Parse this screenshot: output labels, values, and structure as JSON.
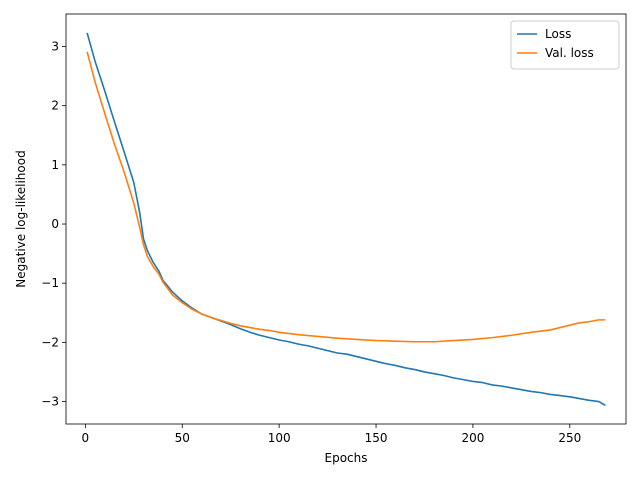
{
  "chart_data": {
    "type": "line",
    "title": "",
    "xlabel": "Epochs",
    "ylabel": "Negative log-likelihood",
    "xlim": [
      -10,
      279
    ],
    "ylim": [
      -3.38,
      3.55
    ],
    "xticks": [
      0,
      50,
      100,
      150,
      200,
      250
    ],
    "xtick_labels": [
      "0",
      "50",
      "100",
      "150",
      "200",
      "250"
    ],
    "yticks": [
      -3,
      -2,
      -1,
      0,
      1,
      2,
      3
    ],
    "ytick_labels": [
      "−3",
      "−2",
      "−1",
      "0",
      "1",
      "2",
      "3"
    ],
    "grid": false,
    "legend_position": "upper right",
    "series": [
      {
        "name": "Loss",
        "color": "#1f77b4",
        "x": [
          1,
          5,
          10,
          15,
          20,
          25,
          28,
          30,
          32,
          35,
          38,
          40,
          45,
          50,
          55,
          60,
          65,
          70,
          75,
          80,
          85,
          90,
          95,
          100,
          105,
          110,
          115,
          120,
          125,
          130,
          135,
          140,
          145,
          150,
          155,
          160,
          165,
          170,
          175,
          180,
          185,
          190,
          195,
          200,
          205,
          210,
          215,
          220,
          225,
          230,
          235,
          240,
          245,
          250,
          255,
          260,
          265,
          268
        ],
        "y": [
          3.22,
          2.75,
          2.25,
          1.73,
          1.22,
          0.7,
          0.2,
          -0.25,
          -0.45,
          -0.65,
          -0.8,
          -0.95,
          -1.15,
          -1.3,
          -1.42,
          -1.52,
          -1.58,
          -1.64,
          -1.7,
          -1.77,
          -1.83,
          -1.88,
          -1.92,
          -1.96,
          -1.99,
          -2.03,
          -2.06,
          -2.1,
          -2.14,
          -2.18,
          -2.2,
          -2.24,
          -2.28,
          -2.32,
          -2.36,
          -2.39,
          -2.43,
          -2.46,
          -2.5,
          -2.53,
          -2.56,
          -2.6,
          -2.63,
          -2.66,
          -2.68,
          -2.72,
          -2.74,
          -2.77,
          -2.8,
          -2.83,
          -2.85,
          -2.88,
          -2.9,
          -2.92,
          -2.95,
          -2.98,
          -3.0,
          -3.06
        ]
      },
      {
        "name": "Val. loss",
        "color": "#ff7f0e",
        "x": [
          1,
          5,
          10,
          15,
          20,
          25,
          28,
          30,
          32,
          35,
          38,
          40,
          45,
          50,
          55,
          60,
          65,
          70,
          75,
          80,
          85,
          90,
          95,
          100,
          110,
          120,
          130,
          140,
          150,
          160,
          170,
          180,
          190,
          200,
          210,
          220,
          230,
          240,
          245,
          250,
          255,
          260,
          265,
          268
        ],
        "y": [
          2.9,
          2.4,
          1.87,
          1.35,
          0.88,
          0.35,
          -0.05,
          -0.35,
          -0.55,
          -0.72,
          -0.85,
          -0.98,
          -1.2,
          -1.33,
          -1.44,
          -1.52,
          -1.58,
          -1.63,
          -1.68,
          -1.72,
          -1.75,
          -1.78,
          -1.8,
          -1.83,
          -1.87,
          -1.9,
          -1.93,
          -1.95,
          -1.97,
          -1.98,
          -1.99,
          -1.99,
          -1.97,
          -1.95,
          -1.92,
          -1.88,
          -1.83,
          -1.79,
          -1.75,
          -1.71,
          -1.67,
          -1.65,
          -1.62,
          -1.62
        ]
      }
    ]
  }
}
